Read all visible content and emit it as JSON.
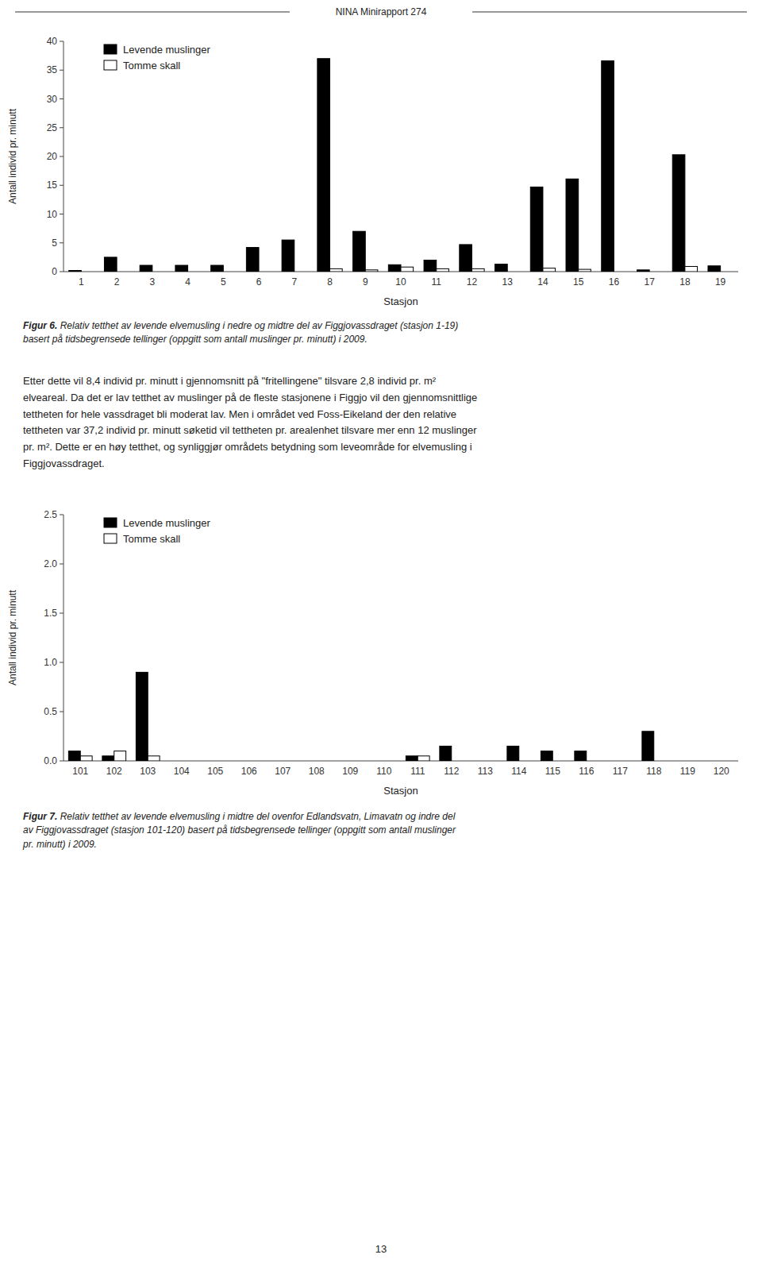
{
  "header": "NINA Minirapport 274",
  "body_text": "Etter dette vil 8,4 individ pr. minutt i gjennomsnitt på \"fritellingene\" tilsvare 2,8 individ pr. m²\nelveareal. Da det er lav tetthet av muslinger på de fleste stasjonene i Figgjo vil den gjennomsnittlige\ntettheten for hele vassdraget bli moderat lav. Men i området ved Foss-Eikeland der den relative\ntettheten var 37,2 individ pr. minutt søketid vil tettheten pr. arealenhet tilsvare mer enn 12 muslinger\npr. m². Dette er en høy tetthet, og synliggjør områdets betydning som leveområde for elvemusling i\nFiggjovassdraget.",
  "page_number": "13",
  "chart_data": [
    {
      "type": "bar",
      "xlabel": "Stasjon",
      "ylabel": "Antall individ pr. minutt",
      "categories": [
        "1",
        "2",
        "3",
        "4",
        "5",
        "6",
        "7",
        "8",
        "9",
        "10",
        "11",
        "12",
        "13",
        "14",
        "15",
        "16",
        "17",
        "18",
        "19"
      ],
      "series": [
        {
          "name": "Levende muslinger",
          "color": "#000000",
          "values": [
            0.2,
            2.5,
            1.1,
            1.1,
            1.1,
            4.2,
            5.5,
            37.0,
            7.0,
            1.2,
            2.0,
            4.7,
            1.3,
            14.7,
            16.1,
            36.6,
            0.3,
            20.3,
            1.0
          ]
        },
        {
          "name": "Tomme skall",
          "color": "#ffffff",
          "values": [
            0.0,
            0.0,
            0.0,
            0.0,
            0.0,
            0.0,
            0.0,
            0.5,
            0.3,
            0.8,
            0.5,
            0.5,
            0.0,
            0.6,
            0.4,
            0.0,
            0.0,
            0.9,
            0.0
          ]
        }
      ],
      "ylim": [
        0,
        40
      ],
      "yticks": [
        0,
        5,
        10,
        15,
        20,
        25,
        30,
        35,
        40
      ],
      "grid": false,
      "legend": "upper left",
      "annotations": [
        "Figur 6.",
        " Relativ tetthet av levende elvemusling i nedre og midtre del av Figgjovassdraget (stasjon 1-19)\nbasert på tidsbegrensede tellinger (oppgitt som antall muslinger pr. minutt) i 2009."
      ]
    },
    {
      "type": "bar",
      "xlabel": "Stasjon",
      "ylabel": "Antall individ pr. minutt",
      "categories": [
        "101",
        "102",
        "103",
        "104",
        "105",
        "106",
        "107",
        "108",
        "109",
        "110",
        "111",
        "112",
        "113",
        "114",
        "115",
        "116",
        "117",
        "118",
        "119",
        "120"
      ],
      "series": [
        {
          "name": "Levende muslinger",
          "color": "#000000",
          "values": [
            0.1,
            0.05,
            0.9,
            0.0,
            0.0,
            0.0,
            0.0,
            0.0,
            0.0,
            0.0,
            0.05,
            0.15,
            0.0,
            0.15,
            0.1,
            0.1,
            0.0,
            0.3,
            0.0,
            0.0
          ]
        },
        {
          "name": "Tomme skall",
          "color": "#ffffff",
          "values": [
            0.05,
            0.1,
            0.05,
            0.0,
            0.0,
            0.0,
            0.0,
            0.0,
            0.0,
            0.0,
            0.05,
            0.0,
            0.0,
            0.0,
            0.0,
            0.0,
            0.0,
            0.0,
            0.0,
            0.0
          ]
        }
      ],
      "ylim": [
        0.0,
        2.5
      ],
      "yticks": [
        {
          "value": 0.0,
          "label": "0.0"
        },
        0.5,
        {
          "value": 1.0,
          "label": "1.0"
        },
        1.5,
        {
          "value": 2.0,
          "label": "2.0"
        },
        2.5
      ],
      "grid": false,
      "legend": "upper left",
      "annotations": [
        "Figur 7.",
        " Relativ tetthet av levende elvemusling i midtre del ovenfor Edlandsvatn, Limavatn og indre del\nav Figgjovassdraget (stasjon 101-120) basert på tidsbegrensede tellinger (oppgitt som antall muslinger\npr. minutt) i 2009."
      ]
    }
  ]
}
